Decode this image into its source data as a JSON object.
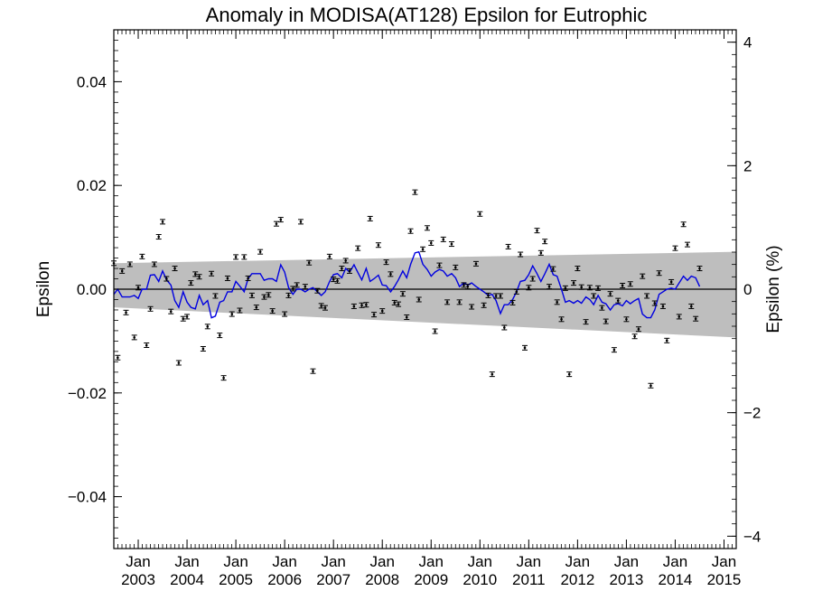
{
  "chart_data": {
    "type": "scatter",
    "title": "Anomaly in MODISA(AT128) Epsilon for Eutrophic",
    "ylabel_left": "Epsilon",
    "ylabel_right": "Epsilon (%)",
    "ylim_left": [
      -0.05,
      0.05
    ],
    "ylim_right": [
      -4.2,
      4.2
    ],
    "xlim": [
      2002.5,
      2015.25
    ],
    "left_ticks": [
      {
        "value": 0.04,
        "label": "0.04"
      },
      {
        "value": 0.02,
        "label": "0.02"
      },
      {
        "value": 0.0,
        "label": "0.00"
      },
      {
        "value": -0.02,
        "label": "−0.02"
      },
      {
        "value": -0.04,
        "label": "−0.04"
      }
    ],
    "right_ticks": [
      {
        "value": 4,
        "label": "4"
      },
      {
        "value": 2,
        "label": "2"
      },
      {
        "value": 0,
        "label": "0"
      },
      {
        "value": -2,
        "label": "−2"
      },
      {
        "value": -4,
        "label": "−4"
      }
    ],
    "x_ticks": [
      {
        "value": 2003.0,
        "month": "Jan",
        "year": "2003"
      },
      {
        "value": 2004.0,
        "month": "Jan",
        "year": "2004"
      },
      {
        "value": 2005.0,
        "month": "Jan",
        "year": "2005"
      },
      {
        "value": 2006.0,
        "month": "Jan",
        "year": "2006"
      },
      {
        "value": 2007.0,
        "month": "Jan",
        "year": "2007"
      },
      {
        "value": 2008.0,
        "month": "Jan",
        "year": "2008"
      },
      {
        "value": 2009.0,
        "month": "Jan",
        "year": "2009"
      },
      {
        "value": 2010.0,
        "month": "Jan",
        "year": "2010"
      },
      {
        "value": 2011.0,
        "month": "Jan",
        "year": "2011"
      },
      {
        "value": 2012.0,
        "month": "Jan",
        "year": "2012"
      },
      {
        "value": 2013.0,
        "month": "Jan",
        "year": "2013"
      },
      {
        "value": 2014.0,
        "month": "Jan",
        "year": "2014"
      },
      {
        "value": 2015.0,
        "month": "Jan",
        "year": "2015"
      }
    ],
    "uncertainty_band": {
      "color": "#bebebe",
      "x": [
        2002.5,
        2015.25
      ],
      "upper": [
        0.005,
        0.0072
      ],
      "lower": [
        -0.0035,
        -0.0093
      ]
    },
    "zero_line": 0.0,
    "points_color": "#000000",
    "points": [
      [
        2002.5,
        0.005
      ],
      [
        2002.58,
        -0.0132
      ],
      [
        2002.67,
        0.0035
      ],
      [
        2002.75,
        -0.0045
      ],
      [
        2002.83,
        0.0048
      ],
      [
        2002.92,
        -0.0093
      ],
      [
        2003.0,
        0.0003
      ],
      [
        2003.08,
        0.0063
      ],
      [
        2003.17,
        -0.0108
      ],
      [
        2003.25,
        -0.0038
      ],
      [
        2003.33,
        0.0048
      ],
      [
        2003.42,
        0.0101
      ],
      [
        2003.5,
        0.013
      ],
      [
        2003.58,
        0.002
      ],
      [
        2003.67,
        -0.0043
      ],
      [
        2003.75,
        0.004
      ],
      [
        2003.83,
        -0.0142
      ],
      [
        2003.92,
        -0.0057
      ],
      [
        2004.0,
        -0.0053
      ],
      [
        2004.08,
        0.0012
      ],
      [
        2004.17,
        0.0029
      ],
      [
        2004.25,
        0.0024
      ],
      [
        2004.33,
        -0.0115
      ],
      [
        2004.42,
        -0.0072
      ],
      [
        2004.5,
        0.003
      ],
      [
        2004.58,
        -0.0013
      ],
      [
        2004.67,
        -0.0089
      ],
      [
        2004.75,
        -0.0171
      ],
      [
        2004.83,
        0.0021
      ],
      [
        2004.92,
        -0.0048
      ],
      [
        2005.0,
        0.0062
      ],
      [
        2005.08,
        -0.0041
      ],
      [
        2005.17,
        0.0062
      ],
      [
        2005.25,
        0.0021
      ],
      [
        2005.33,
        -0.0012
      ],
      [
        2005.42,
        -0.0035
      ],
      [
        2005.5,
        0.0072
      ],
      [
        2005.58,
        -0.0015
      ],
      [
        2005.67,
        -0.0011
      ],
      [
        2005.75,
        -0.0042
      ],
      [
        2005.83,
        0.0126
      ],
      [
        2005.92,
        0.0134
      ],
      [
        2006.0,
        -0.0048
      ],
      [
        2006.08,
        -0.0012
      ],
      [
        2006.17,
        0.0001
      ],
      [
        2006.25,
        0.0008
      ],
      [
        2006.33,
        0.013
      ],
      [
        2006.42,
        0.0005
      ],
      [
        2006.5,
        0.0051
      ],
      [
        2006.58,
        -0.0158
      ],
      [
        2006.67,
        -0.0003
      ],
      [
        2006.75,
        -0.0032
      ],
      [
        2006.83,
        -0.0036
      ],
      [
        2006.92,
        0.0063
      ],
      [
        2007.0,
        0.0019
      ],
      [
        2007.08,
        0.0016
      ],
      [
        2007.17,
        0.004
      ],
      [
        2007.25,
        0.0055
      ],
      [
        2007.33,
        0.0035
      ],
      [
        2007.42,
        -0.0033
      ],
      [
        2007.5,
        0.0079
      ],
      [
        2007.58,
        -0.0031
      ],
      [
        2007.67,
        -0.003
      ],
      [
        2007.75,
        0.0136
      ],
      [
        2007.83,
        -0.0049
      ],
      [
        2007.92,
        0.0085
      ],
      [
        2008.0,
        -0.0042
      ],
      [
        2008.08,
        0.0052
      ],
      [
        2008.17,
        0.0029
      ],
      [
        2008.25,
        -0.0026
      ],
      [
        2008.33,
        -0.0029
      ],
      [
        2008.42,
        -0.0009
      ],
      [
        2008.5,
        -0.0054
      ],
      [
        2008.58,
        0.0112
      ],
      [
        2008.67,
        0.0187
      ],
      [
        2008.75,
        -0.002
      ],
      [
        2008.83,
        0.0077
      ],
      [
        2008.92,
        0.0118
      ],
      [
        2009.0,
        0.0089
      ],
      [
        2009.08,
        -0.0081
      ],
      [
        2009.17,
        0.0046
      ],
      [
        2009.25,
        0.0096
      ],
      [
        2009.33,
        -0.0025
      ],
      [
        2009.42,
        0.0087
      ],
      [
        2009.5,
        0.0042
      ],
      [
        2009.58,
        -0.0025
      ],
      [
        2009.67,
        0.0008
      ],
      [
        2009.75,
        0.0005
      ],
      [
        2009.83,
        -0.0034
      ],
      [
        2009.92,
        0.0049
      ],
      [
        2010.0,
        0.0145
      ],
      [
        2010.08,
        -0.0031
      ],
      [
        2010.17,
        -0.0012
      ],
      [
        2010.25,
        -0.0164
      ],
      [
        2010.33,
        -0.0013
      ],
      [
        2010.42,
        -0.0013
      ],
      [
        2010.5,
        -0.0074
      ],
      [
        2010.58,
        0.0082
      ],
      [
        2010.67,
        -0.0026
      ],
      [
        2010.75,
        -0.0005
      ],
      [
        2010.83,
        0.0067
      ],
      [
        2010.92,
        -0.0113
      ],
      [
        2011.0,
        0.0003
      ],
      [
        2011.08,
        0.002
      ],
      [
        2011.17,
        0.0113
      ],
      [
        2011.25,
        0.007
      ],
      [
        2011.33,
        0.0092
      ],
      [
        2011.42,
        0.0005
      ],
      [
        2011.5,
        0.0039
      ],
      [
        2011.58,
        -0.0025
      ],
      [
        2011.67,
        -0.0058
      ],
      [
        2011.75,
        0.0002
      ],
      [
        2011.83,
        -0.0164
      ],
      [
        2011.92,
        0.0012
      ],
      [
        2012.0,
        0.004
      ],
      [
        2012.08,
        0.0004
      ],
      [
        2012.17,
        -0.0063
      ],
      [
        2012.25,
        0.0003
      ],
      [
        2012.33,
        -0.0013
      ],
      [
        2012.42,
        0.0002
      ],
      [
        2012.5,
        -0.0036
      ],
      [
        2012.58,
        -0.0062
      ],
      [
        2012.67,
        -0.0009
      ],
      [
        2012.75,
        -0.0117
      ],
      [
        2012.83,
        -0.0022
      ],
      [
        2012.92,
        0.0007
      ],
      [
        2013.0,
        -0.0058
      ],
      [
        2013.08,
        0.001
      ],
      [
        2013.17,
        -0.0091
      ],
      [
        2013.25,
        -0.0077
      ],
      [
        2013.33,
        0.0025
      ],
      [
        2013.42,
        -0.0013
      ],
      [
        2013.5,
        -0.0186
      ],
      [
        2013.58,
        -0.0027
      ],
      [
        2013.67,
        0.0031
      ],
      [
        2013.75,
        -0.0033
      ],
      [
        2013.83,
        -0.0099
      ],
      [
        2013.92,
        0.0014
      ],
      [
        2014.0,
        0.0079
      ],
      [
        2014.08,
        -0.0053
      ],
      [
        2014.17,
        0.0125
      ],
      [
        2014.25,
        0.0086
      ],
      [
        2014.33,
        -0.0033
      ],
      [
        2014.42,
        -0.0057
      ],
      [
        2014.5,
        0.004
      ]
    ],
    "series": [
      {
        "color": "#0000e0",
        "x": [
          2002.5,
          2002.58,
          2002.67,
          2002.75,
          2002.83,
          2002.92,
          2003.0,
          2003.08,
          2003.17,
          2003.25,
          2003.33,
          2003.42,
          2003.5,
          2003.58,
          2003.67,
          2003.75,
          2003.83,
          2003.92,
          2004.0,
          2004.08,
          2004.17,
          2004.25,
          2004.33,
          2004.42,
          2004.5,
          2004.58,
          2004.67,
          2004.75,
          2004.83,
          2004.92,
          2005.0,
          2005.08,
          2005.17,
          2005.25,
          2005.33,
          2005.42,
          2005.5,
          2005.58,
          2005.67,
          2005.75,
          2005.83,
          2005.92,
          2006.0,
          2006.08,
          2006.17,
          2006.25,
          2006.33,
          2006.42,
          2006.5,
          2006.58,
          2006.67,
          2006.75,
          2006.83,
          2006.92,
          2007.0,
          2007.08,
          2007.17,
          2007.25,
          2007.33,
          2007.42,
          2007.5,
          2007.58,
          2007.67,
          2007.75,
          2007.83,
          2007.92,
          2008.0,
          2008.08,
          2008.17,
          2008.25,
          2008.33,
          2008.42,
          2008.5,
          2008.58,
          2008.67,
          2008.75,
          2008.83,
          2008.92,
          2009.0,
          2009.08,
          2009.17,
          2009.25,
          2009.33,
          2009.42,
          2009.5,
          2009.58,
          2009.67,
          2009.75,
          2009.83,
          2009.92,
          2010.0,
          2010.08,
          2010.17,
          2010.25,
          2010.33,
          2010.42,
          2010.5,
          2010.58,
          2010.67,
          2010.75,
          2010.83,
          2010.92,
          2011.0,
          2011.08,
          2011.17,
          2011.25,
          2011.33,
          2011.42,
          2011.5,
          2011.58,
          2011.67,
          2011.75,
          2011.83,
          2011.92,
          2012.0,
          2012.08,
          2012.17,
          2012.25,
          2012.33,
          2012.42,
          2012.5,
          2012.58,
          2012.67,
          2012.75,
          2012.83,
          2012.92,
          2013.0,
          2013.08,
          2013.17,
          2013.25,
          2013.33,
          2013.42,
          2013.5,
          2013.58,
          2013.67,
          2013.75,
          2013.83,
          2013.92,
          2014.0,
          2014.08,
          2014.17,
          2014.25,
          2014.33,
          2014.42,
          2014.5
        ],
        "y": [
          -0.001,
          0.0,
          -0.0015,
          -0.0015,
          -0.0015,
          -0.0012,
          -0.0018,
          0.0,
          0.0,
          0.0027,
          0.0028,
          0.0015,
          0.0035,
          0.0018,
          0.0008,
          -0.0022,
          -0.0035,
          -0.0005,
          -0.0025,
          -0.0035,
          -0.0038,
          -0.0012,
          -0.003,
          -0.0022,
          -0.0055,
          -0.0052,
          -0.0025,
          -0.0022,
          -0.0005,
          -0.0005,
          0.0015,
          0.0006,
          -0.0005,
          0.002,
          0.003,
          0.003,
          0.003,
          0.0017,
          0.002,
          0.002,
          0.0015,
          0.0047,
          0.0033,
          0.0003,
          -0.001,
          0.0,
          0.0,
          -0.0005,
          0.0,
          0.0003,
          -0.0005,
          -0.0012,
          -0.0005,
          0.0015,
          0.0028,
          0.003,
          0.0022,
          0.004,
          0.0033,
          0.0047,
          0.0032,
          0.0018,
          0.004,
          0.0015,
          0.002,
          0.0027,
          0.0008,
          0.0007,
          -0.0005,
          0.0005,
          0.0018,
          0.0035,
          0.0022,
          0.0048,
          0.007,
          0.0072,
          0.0048,
          0.0038,
          0.0025,
          0.0033,
          0.0038,
          0.0035,
          0.0025,
          0.003,
          0.0022,
          0.0005,
          0.0012,
          0.0008,
          0.0012,
          0.0005,
          0.0,
          -0.0005,
          -0.0012,
          -0.001,
          -0.0022,
          -0.0047,
          -0.003,
          -0.003,
          -0.002,
          -0.0005,
          0.0015,
          0.0017,
          0.0028,
          0.0045,
          0.003,
          0.0015,
          0.003,
          0.0048,
          0.0028,
          0.0025,
          0.0,
          -0.0025,
          -0.0022,
          -0.0027,
          -0.0022,
          -0.0027,
          -0.0015,
          -0.002,
          -0.003,
          -0.0012,
          -0.0025,
          -0.0028,
          -0.004,
          -0.003,
          -0.0028,
          -0.0032,
          -0.0022,
          -0.0028,
          -0.0022,
          -0.0018,
          -0.0048,
          -0.0055,
          -0.0055,
          -0.004,
          -0.001,
          -0.0005,
          0.0,
          0.0002,
          0.0,
          0.0012,
          0.0025,
          0.0017,
          0.0025,
          0.0022,
          0.0005
        ]
      }
    ]
  }
}
